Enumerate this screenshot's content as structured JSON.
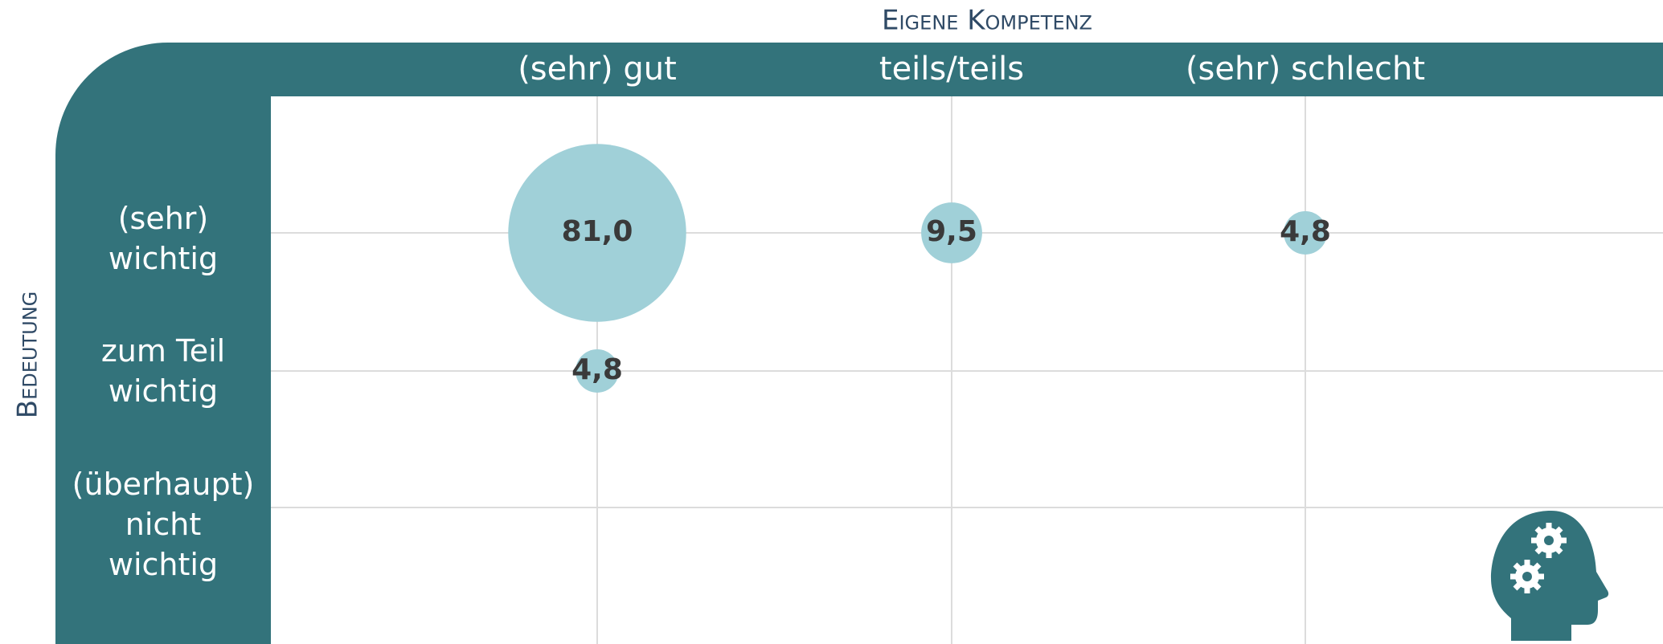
{
  "chart_data": {
    "type": "bubble",
    "x_label": "Eigene Kompetenz",
    "y_label": "Bedeutung",
    "x_categories": [
      "(sehr) gut",
      "teils/teils",
      "(sehr) schlecht"
    ],
    "y_categories": [
      "(sehr) wichtig",
      "zum Teil wichtig",
      "(überhaupt) nicht wichtig"
    ],
    "x": [
      "(sehr) gut",
      "teils/teils",
      "(sehr) schlecht",
      "(sehr) gut"
    ],
    "y": [
      "(sehr) wichtig",
      "(sehr) wichtig",
      "(sehr) wichtig",
      "zum Teil wichtig"
    ],
    "values": [
      81.0,
      9.5,
      4.8,
      4.8
    ],
    "value_labels": [
      "81,0",
      "9,5",
      "4,8",
      "4,8"
    ],
    "color": "#a0d0d8",
    "grid": true
  }
}
